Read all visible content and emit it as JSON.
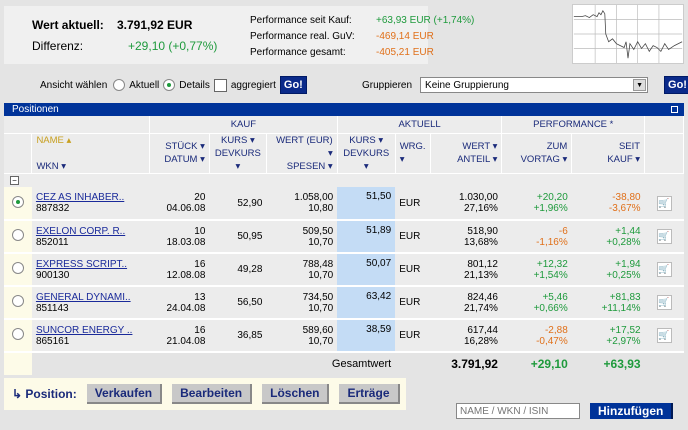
{
  "summary": {
    "wert_label": "Wert aktuell:",
    "wert_value": "3.791,92 EUR",
    "diff_label": "Differenz:",
    "diff_value": "+29,10 (+0,77%)",
    "perf": [
      {
        "label": "Performance seit Kauf:",
        "value": "+63,93 EUR (+1,74%)",
        "color": "#1e9a3c"
      },
      {
        "label": "Performance real. GuV:",
        "value": "-469,14 EUR",
        "color": "#e0701a"
      },
      {
        "label": "Performance gesamt:",
        "value": "-405,21 EUR",
        "color": "#e0701a"
      }
    ]
  },
  "controls": {
    "ansicht_label": "Ansicht wählen",
    "aktuell": "Aktuell",
    "details": "Details",
    "aggregiert": "aggregiert",
    "go": "Go!",
    "gruppieren_label": "Gruppieren",
    "gruppieren_value": "Keine Gruppierung"
  },
  "section_title": "Positionen",
  "groups": {
    "kauf": "KAUF",
    "aktuell": "AKTUELL",
    "performance": "PERFORMANCE *"
  },
  "headers": {
    "name": "NAME",
    "wkn": "WKN",
    "stueck": "STÜCK",
    "datum": "DATUM",
    "kurs": "KURS",
    "devkurs": "DEVKURS",
    "wert_eur": "WERT (EUR)",
    "spesen": "SPESEN",
    "a_kurs": "KURS",
    "a_devkurs": "DEVKURS",
    "wrg": "WRG.",
    "wert": "WERT",
    "anteil": "ANTEIL",
    "zum": "ZUM",
    "vortag": "VORTAG",
    "seit": "SEIT",
    "kauf": "KAUF"
  },
  "rows": [
    {
      "name": "CEZ AS INHABER..",
      "wkn": "887832",
      "stueck": "20",
      "datum": "04.06.08",
      "kurs": "52,90",
      "wert": "1.058,00",
      "spesen": "10,80",
      "akurs": "51,50",
      "wrg": "EUR",
      "awert": "1.030,00",
      "anteil": "27,16%",
      "vt": "+20,20",
      "vtp": "+1,96%",
      "vtc": "#1e9a3c",
      "sk": "-38,80",
      "skp": "-3,67%",
      "skc": "#e0701a",
      "selected": true
    },
    {
      "name": "EXELON CORP. R..",
      "wkn": "852011",
      "stueck": "10",
      "datum": "18.03.08",
      "kurs": "50,95",
      "wert": "509,50",
      "spesen": "10,70",
      "akurs": "51,89",
      "wrg": "EUR",
      "awert": "518,90",
      "anteil": "13,68%",
      "vt": "-6",
      "vtp": "-1,16%",
      "vtc": "#e0701a",
      "sk": "+1,44",
      "skp": "+0,28%",
      "skc": "#1e9a3c"
    },
    {
      "name": "EXPRESS SCRIPT..",
      "wkn": "900130",
      "stueck": "16",
      "datum": "12.08.08",
      "kurs": "49,28",
      "wert": "788,48",
      "spesen": "10,70",
      "akurs": "50,07",
      "wrg": "EUR",
      "awert": "801,12",
      "anteil": "21,13%",
      "vt": "+12,32",
      "vtp": "+1,54%",
      "vtc": "#1e9a3c",
      "sk": "+1,94",
      "skp": "+0,25%",
      "skc": "#1e9a3c"
    },
    {
      "name": "GENERAL DYNAMI..",
      "wkn": "851143",
      "stueck": "13",
      "datum": "24.04.08",
      "kurs": "56,50",
      "wert": "734,50",
      "spesen": "10,70",
      "akurs": "63,42",
      "wrg": "EUR",
      "awert": "824,46",
      "anteil": "21,74%",
      "vt": "+5,46",
      "vtp": "+0,66%",
      "vtc": "#1e9a3c",
      "sk": "+81,83",
      "skp": "+11,14%",
      "skc": "#1e9a3c"
    },
    {
      "name": "SUNCOR ENERGY ..",
      "wkn": "865161",
      "stueck": "16",
      "datum": "21.04.08",
      "kurs": "36,85",
      "wert": "589,60",
      "spesen": "10,70",
      "akurs": "38,59",
      "wrg": "EUR",
      "awert": "617,44",
      "anteil": "16,28%",
      "vt": "-2,88",
      "vtp": "-0,47%",
      "vtc": "#e0701a",
      "sk": "+17,52",
      "skp": "+2,97%",
      "skc": "#1e9a3c"
    }
  ],
  "total": {
    "label": "Gesamtwert",
    "wert": "3.791,92",
    "vortag": "+29,10",
    "seit": "+63,93"
  },
  "actions": {
    "label": "Position:",
    "buttons": [
      "Verkaufen",
      "Bearbeiten",
      "Löschen",
      "Erträge"
    ],
    "search_placeholder": "NAME / WKN / ISIN",
    "add": "Hinzufügen"
  }
}
